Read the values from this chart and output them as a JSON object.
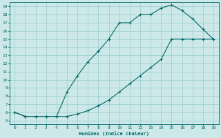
{
  "xlabel": "Humidex (Indice chaleur)",
  "bg_color": "#cce8e8",
  "grid_color": "#99cccc",
  "line_color": "#006666",
  "xlim": [
    -0.5,
    19.5
  ],
  "ylim": [
    4.5,
    19.5
  ],
  "xticks": [
    0,
    1,
    2,
    3,
    4,
    5,
    6,
    7,
    8,
    9,
    10,
    11,
    12,
    13,
    14,
    15,
    16,
    17,
    18,
    19
  ],
  "yticks": [
    5,
    6,
    7,
    8,
    9,
    10,
    11,
    12,
    13,
    14,
    15,
    16,
    17,
    18,
    19
  ],
  "curve1_x": [
    0,
    1,
    2,
    3,
    4,
    5,
    6,
    7,
    8,
    9,
    10,
    11,
    12,
    13,
    14,
    15,
    16,
    17,
    18,
    19
  ],
  "curve1_y": [
    6,
    5.5,
    5.5,
    5.5,
    5.5,
    8.5,
    10.5,
    12.2,
    13.5,
    15.0,
    17.0,
    17.0,
    18.0,
    18.0,
    18.8,
    19.2,
    18.5,
    17.5,
    16.2,
    15.0
  ],
  "curve2_x": [
    0,
    1,
    2,
    3,
    4,
    5,
    6,
    7,
    8,
    9,
    10,
    11,
    12,
    13,
    14,
    15,
    16,
    17,
    18,
    19
  ],
  "curve2_y": [
    6,
    5.5,
    5.5,
    5.5,
    5.5,
    5.5,
    5.8,
    6.2,
    6.8,
    7.5,
    8.5,
    9.5,
    10.5,
    11.5,
    12.5,
    15.0,
    15.0,
    15.0,
    15.0,
    15.0
  ]
}
